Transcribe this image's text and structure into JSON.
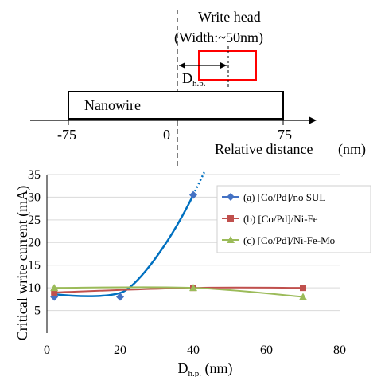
{
  "schematic": {
    "write_head_label": "Write head",
    "write_head_width": "(Width:~50nm)",
    "dhp_main": "D",
    "dhp_sub": "h.p.",
    "nanowire_label": "Nanowire",
    "axis_ticks": [
      "-75",
      "0",
      "75"
    ],
    "axis_label": "Relative distance",
    "axis_unit": "(nm)"
  },
  "chart_data": {
    "type": "scatter",
    "xlabel_main": "D",
    "xlabel_sub": "h.p.",
    "xlabel_unit": " (nm)",
    "ylabel": "Critical write current (mA)",
    "xlim": [
      0,
      80
    ],
    "ylim": [
      0,
      35
    ],
    "xticks": [
      "0",
      "20",
      "40",
      "60",
      "80"
    ],
    "yticks": [
      "5",
      "10",
      "15",
      "20",
      "25",
      "30",
      "35"
    ],
    "grid": "horizontal",
    "legend_position": "top-right",
    "series": [
      {
        "name": "(a) [Co/Pd]/no SUL",
        "color": "#4472C4",
        "marker": "diamond",
        "x": [
          2,
          20,
          40
        ],
        "y": [
          8,
          8,
          30.5
        ]
      },
      {
        "name": "(b) [Co/Pd]/Ni-Fe",
        "color": "#C0504D",
        "marker": "square",
        "x": [
          2,
          40,
          70
        ],
        "y": [
          9,
          10,
          10
        ]
      },
      {
        "name": "(c) [Co/Pd]/Ni-Fe-Mo",
        "color": "#9BBB59",
        "marker": "triangle",
        "x": [
          2,
          40,
          70
        ],
        "y": [
          10,
          10,
          8
        ]
      }
    ],
    "fit_curve_color": "#0070C0"
  }
}
